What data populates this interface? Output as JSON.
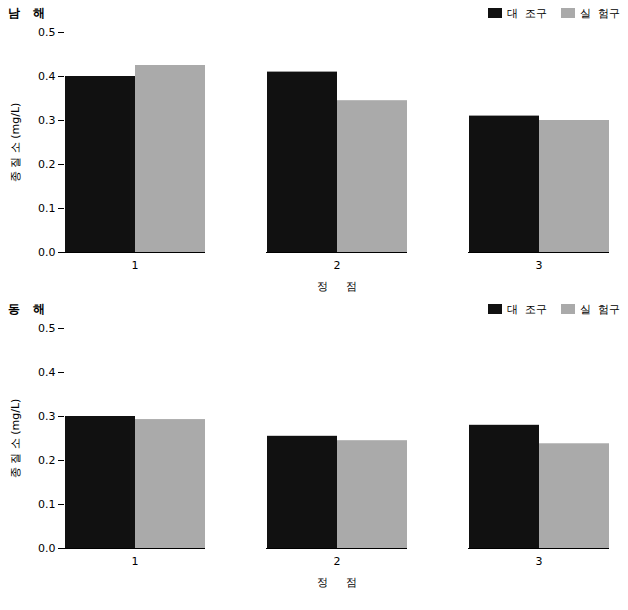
{
  "chart_data": [
    {
      "type": "bar",
      "title": "남   해",
      "categories": [
        "1",
        "2",
        "3"
      ],
      "series": [
        {
          "name": "대  조구",
          "color": "#111111",
          "values": [
            0.4,
            0.41,
            0.31
          ]
        },
        {
          "name": "실  험구",
          "color": "#aaaaaa",
          "values": [
            0.425,
            0.345,
            0.3
          ]
        }
      ],
      "xlabel": "정     점",
      "ylabel": "종 질 소 (mg/L)",
      "ylim": [
        0.0,
        0.5
      ],
      "yticks": [
        {
          "value": 0.0,
          "label": "0.0"
        },
        0.1,
        0.2,
        0.3,
        0.4,
        0.5
      ],
      "grid": false,
      "legend": "upper right"
    },
    {
      "type": "bar",
      "title": "동   해",
      "categories": [
        "1",
        "2",
        "3"
      ],
      "series": [
        {
          "name": "대  조구",
          "color": "#111111",
          "values": [
            0.3,
            0.255,
            0.28
          ]
        },
        {
          "name": "실  험구",
          "color": "#aaaaaa",
          "values": [
            0.293,
            0.245,
            0.238
          ]
        }
      ],
      "xlabel": "정     점",
      "ylabel": "종 질 소 (mg/L)",
      "ylim": [
        0.0,
        0.5
      ],
      "yticks": [
        {
          "value": 0.0,
          "label": "0.0"
        },
        0.1,
        0.2,
        0.3,
        0.4,
        0.5
      ],
      "grid": false,
      "legend": "upper right"
    }
  ]
}
